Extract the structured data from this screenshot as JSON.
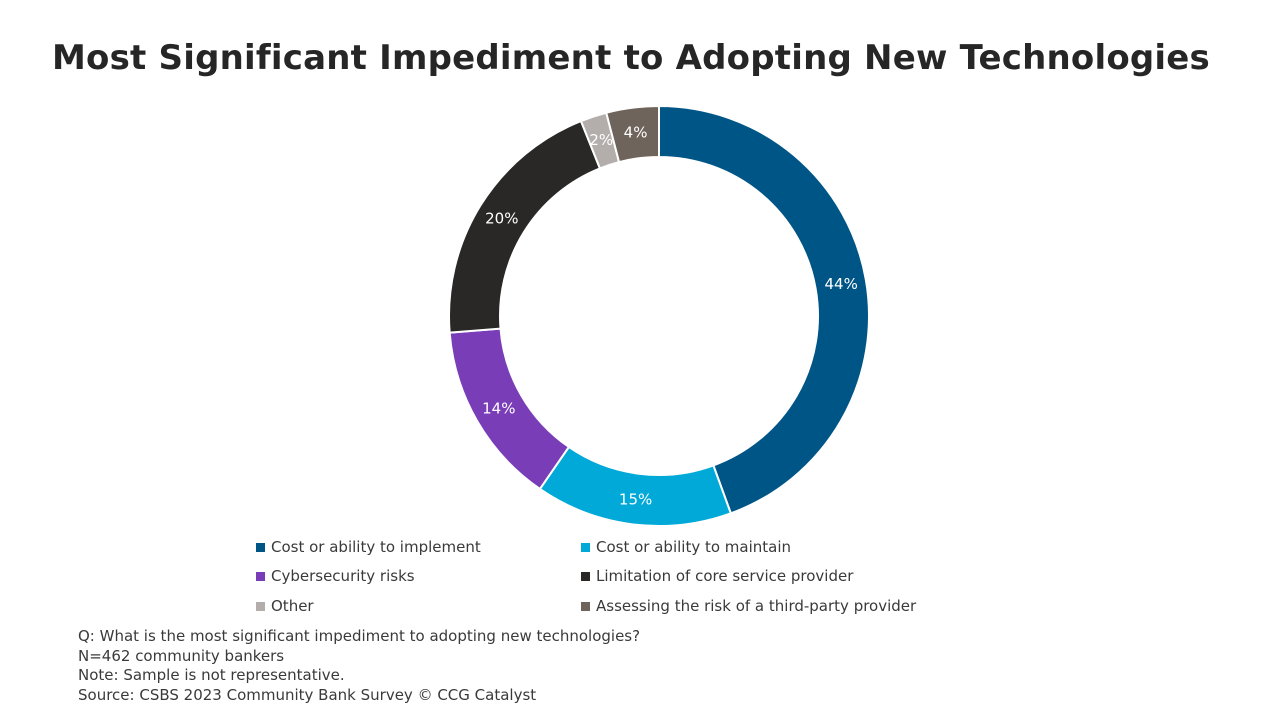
{
  "chart_data": {
    "type": "pie",
    "title": "Most Significant Impediment to Adopting New Technologies",
    "categories": [
      "Cost or ability to implement",
      "Cost or ability to maintain",
      "Cybersecurity risks",
      "Limitation of core service provider",
      "Other",
      "Assessing the risk of a third-party provider"
    ],
    "values": [
      44,
      15,
      14,
      20,
      2,
      4
    ],
    "labels": [
      "44%",
      "15%",
      "14%",
      "20%",
      "2%",
      "4%"
    ],
    "colors": [
      "#005587",
      "#00a9d8",
      "#7a3db8",
      "#2a2826",
      "#b3aeab",
      "#6f645b"
    ],
    "donut": true,
    "legend_position": "bottom"
  },
  "notes": [
    "Q: What is the most significant impediment to adopting new technologies?",
    "N=462 community bankers",
    "Note: Sample is not representative.",
    "Source: CSBS 2023 Community Bank Survey © CCG Catalyst"
  ]
}
